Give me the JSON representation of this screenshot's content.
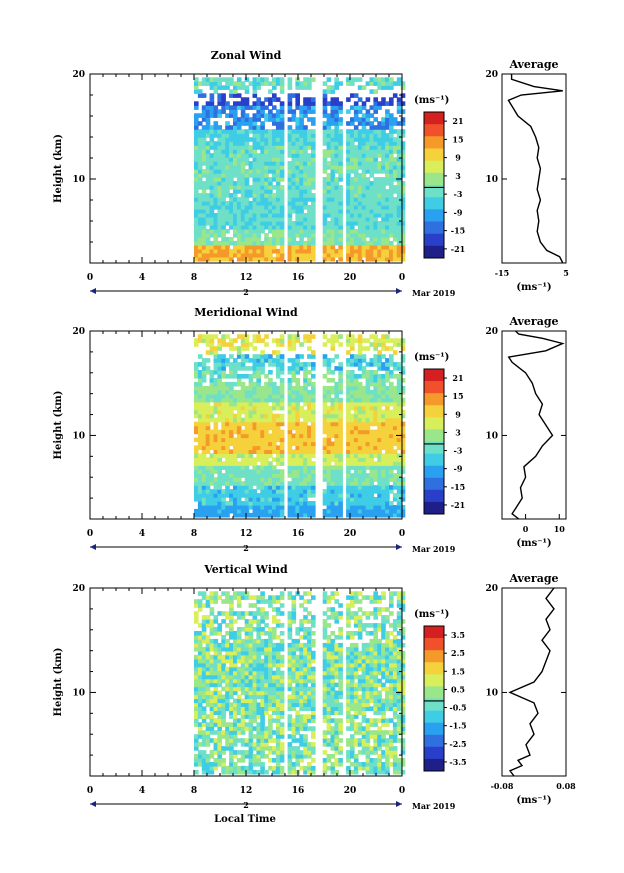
{
  "figure": {
    "xlabel": "Local Time",
    "date_label": "Mar 2019",
    "day_label": "2",
    "height_label": "Height (km)",
    "average_title": "Average",
    "unit": "(ms⁻¹)"
  },
  "chart_data": [
    {
      "type": "heatmap",
      "title": "Zonal Wind",
      "xlabel": "Local Time",
      "ylabel": "Height (km)",
      "xlim": [
        0,
        24
      ],
      "ylim": [
        2,
        20
      ],
      "x_ticks": [
        "0",
        "4",
        "8",
        "12",
        "16",
        "20",
        "0"
      ],
      "y_ticks": [
        "10",
        "20"
      ],
      "data_start_hour": 8,
      "data_gaps_hours": [
        15,
        17.5,
        19.5
      ],
      "colorbar": {
        "unit": "(ms⁻¹)",
        "ticks": [
          "21",
          "15",
          "9",
          "3",
          "-3",
          "-9",
          "-15",
          "-21"
        ],
        "range": [
          -24,
          24
        ]
      },
      "profile": {
        "title": "Average",
        "xlim": [
          -15,
          5
        ],
        "x_ticks": [
          "-15",
          "5"
        ],
        "xlabel": "(ms⁻¹)",
        "y_ticks": [
          "10",
          "20"
        ],
        "points": [
          [
            4,
            2
          ],
          [
            3,
            2.6
          ],
          [
            -1,
            3.2
          ],
          [
            -3,
            4
          ],
          [
            -4,
            5
          ],
          [
            -3.5,
            6
          ],
          [
            -4,
            7
          ],
          [
            -3,
            8
          ],
          [
            -4,
            9
          ],
          [
            -3.5,
            10
          ],
          [
            -3,
            11
          ],
          [
            -4,
            12
          ],
          [
            -3.5,
            13
          ],
          [
            -4.5,
            14
          ],
          [
            -6,
            15
          ],
          [
            -10,
            16
          ],
          [
            -12,
            17
          ],
          [
            -13,
            17.5
          ],
          [
            -9,
            18
          ],
          [
            4,
            18.4
          ],
          [
            -5,
            18.8
          ],
          [
            -12,
            19.5
          ],
          [
            -12,
            20
          ]
        ]
      }
    },
    {
      "type": "heatmap",
      "title": "Meridional Wind",
      "xlabel": "Local Time",
      "ylabel": "Height (km)",
      "xlim": [
        0,
        24
      ],
      "ylim": [
        2,
        20
      ],
      "x_ticks": [
        "0",
        "4",
        "8",
        "12",
        "16",
        "20",
        "0"
      ],
      "y_ticks": [
        "10",
        "20"
      ],
      "data_start_hour": 8,
      "data_gaps_hours": [
        15,
        17.5,
        19.5
      ],
      "colorbar": {
        "unit": "(ms⁻¹)",
        "ticks": [
          "21",
          "15",
          "9",
          "3",
          "-3",
          "-9",
          "-15",
          "-21"
        ],
        "range": [
          -24,
          24
        ]
      },
      "profile": {
        "title": "Average",
        "xlim": [
          -7,
          12
        ],
        "x_ticks": [
          "0",
          "10"
        ],
        "xlabel": "(ms⁻¹)",
        "y_ticks": [
          "10",
          "20"
        ],
        "points": [
          [
            -2,
            2
          ],
          [
            -4,
            2.5
          ],
          [
            -3,
            3
          ],
          [
            -1,
            4
          ],
          [
            -1.5,
            5
          ],
          [
            0,
            6
          ],
          [
            -0.5,
            7
          ],
          [
            3,
            8
          ],
          [
            5,
            9
          ],
          [
            8,
            10
          ],
          [
            6,
            11
          ],
          [
            4,
            12
          ],
          [
            5,
            13
          ],
          [
            3,
            14
          ],
          [
            2,
            15
          ],
          [
            0,
            16
          ],
          [
            -4,
            17
          ],
          [
            -5,
            17.5
          ],
          [
            6,
            18.1
          ],
          [
            11,
            18.8
          ],
          [
            5,
            19.3
          ],
          [
            -2,
            19.7
          ],
          [
            -3,
            20
          ]
        ]
      }
    },
    {
      "type": "heatmap",
      "title": "Vertical Wind",
      "xlabel": "Local Time",
      "ylabel": "Height (km)",
      "xlim": [
        0,
        24
      ],
      "ylim": [
        2,
        20
      ],
      "x_ticks": [
        "0",
        "4",
        "8",
        "12",
        "16",
        "20",
        "0"
      ],
      "y_ticks": [
        "10",
        "20"
      ],
      "data_start_hour": 8,
      "data_gaps_hours": [
        15,
        17.5,
        19.5
      ],
      "colorbar": {
        "unit": "(ms⁻¹)",
        "ticks": [
          "3.5",
          "2.5",
          "1.5",
          "0.5",
          "-0.5",
          "-1.5",
          "-2.5",
          "-3.5"
        ],
        "range": [
          -4,
          4
        ]
      },
      "profile": {
        "title": "Average",
        "xlim": [
          -0.08,
          0.08
        ],
        "x_ticks": [
          "-0.08",
          "0.08"
        ],
        "xlabel": "(ms⁻¹)",
        "y_ticks": [
          "10",
          "20"
        ],
        "points": [
          [
            -0.05,
            2
          ],
          [
            -0.06,
            2.5
          ],
          [
            -0.03,
            3
          ],
          [
            -0.04,
            3.5
          ],
          [
            -0.01,
            4
          ],
          [
            -0.02,
            5
          ],
          [
            0.0,
            6
          ],
          [
            -0.01,
            7
          ],
          [
            0.01,
            8
          ],
          [
            0.0,
            9
          ],
          [
            -0.06,
            10
          ],
          [
            0.0,
            11
          ],
          [
            0.02,
            12
          ],
          [
            0.03,
            13
          ],
          [
            0.04,
            14
          ],
          [
            0.02,
            15
          ],
          [
            0.04,
            16
          ],
          [
            0.03,
            17
          ],
          [
            0.05,
            18
          ],
          [
            0.03,
            19
          ],
          [
            0.05,
            20
          ]
        ]
      }
    }
  ]
}
